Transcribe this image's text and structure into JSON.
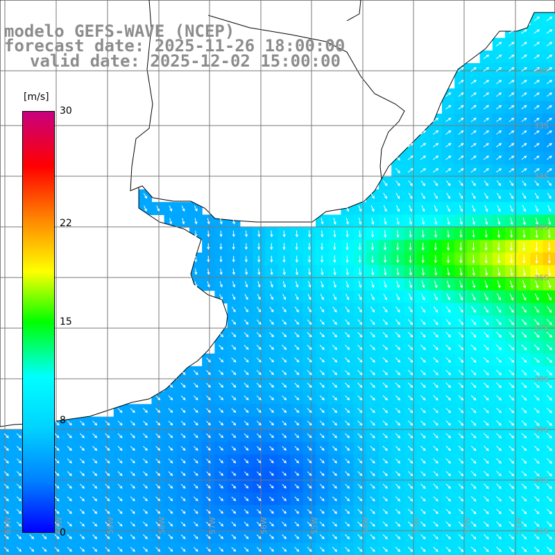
{
  "title": {
    "line1": "modelo GEFS-WAVE (NCEP)",
    "line2": "forecast date: 2025-11-26 18:00:00",
    "line3": "valid date: 2025-12-02 15:00:00"
  },
  "colorbar": {
    "units": "[m/s]",
    "ticks": [
      {
        "label": "30",
        "value": 30
      },
      {
        "label": "22",
        "value": 22
      },
      {
        "label": "15",
        "value": 15
      },
      {
        "label": "8",
        "value": 8
      },
      {
        "label": "0",
        "value": 0
      }
    ],
    "min": 0,
    "max": 30,
    "colors": [
      "#0000ff",
      "#007fff",
      "#00d4ff",
      "#00ffff",
      "#00ff00",
      "#ffff00",
      "#ff8000",
      "#ff0000",
      "#c80080"
    ]
  },
  "map": {
    "land_color": "#ffffff",
    "grid_color": "#777777",
    "arrow_color": "#ffffff",
    "lon_labels": [
      "61W",
      "60W",
      "59W",
      "58W",
      "57W",
      "56W",
      "55W",
      "54W",
      "53W",
      "52W",
      "51W"
    ],
    "lat_labels": [
      "32S",
      "33S",
      "34S",
      "35S",
      "36S",
      "37S",
      "38S",
      "39S",
      "40S",
      "41S"
    ]
  }
}
